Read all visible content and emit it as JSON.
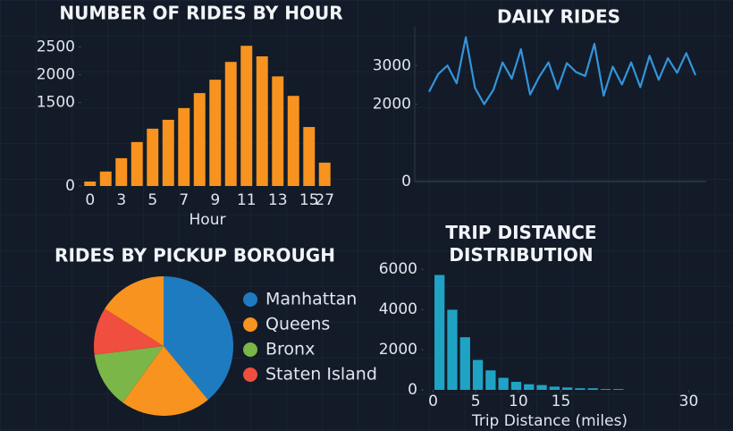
{
  "chart_data": [
    {
      "type": "bar",
      "title": "NUMBER OF RIDES BY HOUR",
      "x_label": "Hour",
      "categories": [
        "0",
        null,
        "3",
        null,
        "5",
        null,
        "7",
        null,
        "9",
        null,
        "11",
        null,
        "13",
        null,
        "15",
        "27"
      ],
      "values": [
        80,
        260,
        500,
        790,
        1030,
        1190,
        1400,
        1670,
        1910,
        2230,
        2520,
        2330,
        1970,
        1620,
        1060,
        420
      ],
      "color": "#f7931e",
      "ylim": [
        0,
        2700
      ],
      "yticks": [
        0,
        1500,
        2000,
        2500
      ]
    },
    {
      "type": "line",
      "title": "DAILY RIDES",
      "categories": [
        null,
        null,
        null,
        null,
        null,
        null,
        null,
        null,
        null,
        null,
        null,
        null,
        null,
        null,
        null,
        null,
        null,
        null,
        null,
        null,
        null,
        null,
        null,
        null,
        null,
        null,
        null,
        null,
        null,
        null
      ],
      "values": [
        2320,
        2780,
        3000,
        2540,
        3730,
        2420,
        2000,
        2370,
        3080,
        2660,
        3420,
        2250,
        2710,
        3080,
        2390,
        3060,
        2830,
        2730,
        3560,
        2220,
        2970,
        2510,
        3080,
        2440,
        3250,
        2630,
        3190,
        2810,
        3320,
        2750
      ],
      "color": "#3394dc",
      "ylim": [
        0,
        4000
      ],
      "yticks": [
        0,
        2000,
        3000
      ]
    },
    {
      "type": "pie",
      "title": "RIDES BY PICKUP BOROUGH",
      "labels": [
        "Manhattan",
        "Queens",
        "Bronx",
        "Staten Island",
        null
      ],
      "values": [
        39,
        21,
        13,
        11,
        16
      ],
      "colors": [
        "#1f7bc0",
        "#f7931e",
        "#7ab648",
        "#f04e3e",
        "#f7931e"
      ]
    },
    {
      "type": "histogram",
      "title": "TRIP DISTANCE DISTRIBUTION",
      "x_label": "Trip Distance (miles)",
      "bins": [
        0,
        1.5,
        3,
        4.5,
        6,
        7.5,
        9,
        10.5,
        12,
        13.5,
        15,
        16.5,
        18,
        19.5,
        21,
        22.5
      ],
      "values": [
        5720,
        3990,
        2620,
        1490,
        970,
        600,
        400,
        280,
        240,
        160,
        120,
        80,
        80,
        40,
        40
      ],
      "color": "#1fa3c4",
      "xlim": [
        -1,
        31
      ],
      "xticks": [
        0,
        5,
        10,
        15,
        30
      ],
      "ylim": [
        0,
        6500
      ],
      "yticks": [
        0,
        2000,
        4000,
        6000
      ]
    }
  ]
}
